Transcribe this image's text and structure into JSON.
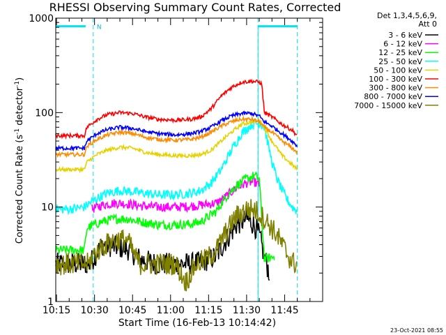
{
  "chart_data": {
    "type": "line",
    "title": "RHESSI Observing Summary Count Rates, Corrected",
    "xlabel": "Start Time (16-Feb-13 10:14:42)",
    "ylabel_main": "Corrected Count Rate (s",
    "ylabel_sup1": "-1",
    "ylabel_mid": " detector",
    "ylabel_sup2": "-1",
    "ylabel_end": ")",
    "x_ticks": [
      "10:15",
      "10:30",
      "10:45",
      "11:00",
      "11:15",
      "11:30",
      "11:45"
    ],
    "x_tick_minutes": [
      15,
      30,
      45,
      60,
      75,
      90,
      105
    ],
    "x_range_minutes": [
      14.7,
      120
    ],
    "y_scale": "log",
    "ylim": [
      1,
      1000
    ],
    "y_ticks": [
      "1",
      "10",
      "100",
      "1000"
    ],
    "y_tick_values": [
      1,
      10,
      100,
      1000
    ],
    "legend_header": [
      "Det 1,3,4,5,6,9,",
      "Att 0"
    ],
    "night_marker": "N",
    "footer_date": "23-Oct-2021 08:55",
    "series": [
      {
        "name": "3 - 6 keV",
        "color": "#000000",
        "points": [
          [
            14.7,
            2.5
          ],
          [
            28,
            2.5
          ],
          [
            30,
            3.0
          ],
          [
            33,
            4.0
          ],
          [
            38,
            3.8
          ],
          [
            43,
            3.6
          ],
          [
            48,
            2.8
          ],
          [
            55,
            2.5
          ],
          [
            60,
            2.5
          ],
          [
            68,
            2.5
          ],
          [
            72,
            2.6
          ],
          [
            78,
            3.0
          ],
          [
            82,
            4.5
          ],
          [
            86,
            6.5
          ],
          [
            90,
            7.5
          ],
          [
            93,
            6.5
          ],
          [
            95,
            5.0
          ],
          [
            97,
            3.0
          ],
          [
            99,
            2.0
          ]
        ]
      },
      {
        "name": "6 - 12 keV",
        "color": "#ff00ff",
        "points": [
          [
            29,
            9.5
          ],
          [
            33,
            10.5
          ],
          [
            38,
            11.0
          ],
          [
            43,
            10.8
          ],
          [
            48,
            10.3
          ],
          [
            55,
            10.0
          ],
          [
            62,
            10.0
          ],
          [
            68,
            10.2
          ],
          [
            72,
            10.5
          ],
          [
            78,
            11.0
          ],
          [
            82,
            13.0
          ],
          [
            86,
            16.0
          ],
          [
            90,
            18.0
          ],
          [
            93,
            18.5
          ],
          [
            95,
            17.0
          ]
        ]
      },
      {
        "name": "12 - 25 keV",
        "color": "#00ff00",
        "points": [
          [
            14.7,
            3.5
          ],
          [
            26,
            3.5
          ],
          [
            27,
            6.0
          ],
          [
            30,
            6.5
          ],
          [
            33,
            7.0
          ],
          [
            38,
            7.5
          ],
          [
            43,
            7.5
          ],
          [
            48,
            7.0
          ],
          [
            55,
            6.5
          ],
          [
            62,
            6.5
          ],
          [
            68,
            6.6
          ],
          [
            72,
            7.0
          ],
          [
            78,
            9.0
          ],
          [
            82,
            13.0
          ],
          [
            86,
            17.0
          ],
          [
            90,
            20.0
          ],
          [
            93,
            21.5
          ],
          [
            95,
            20.0
          ],
          [
            97,
            2.8
          ],
          [
            99,
            2.9
          ],
          [
            101,
            3.0
          ]
        ]
      },
      {
        "name": "25 - 50 keV",
        "color": "#00ffff",
        "points": [
          [
            14.7,
            9.5
          ],
          [
            20,
            9.5
          ],
          [
            26,
            10.0
          ],
          [
            30,
            12.0
          ],
          [
            35,
            14.0
          ],
          [
            40,
            15.0
          ],
          [
            45,
            14.5
          ],
          [
            50,
            14.0
          ],
          [
            55,
            13.5
          ],
          [
            62,
            13.5
          ],
          [
            68,
            14.0
          ],
          [
            72,
            15.0
          ],
          [
            76,
            18.0
          ],
          [
            80,
            25.0
          ],
          [
            84,
            40.0
          ],
          [
            88,
            60.0
          ],
          [
            92,
            75.0
          ],
          [
            95,
            78.0
          ],
          [
            97,
            70.0
          ],
          [
            100,
            30.0
          ],
          [
            102,
            20.0
          ],
          [
            104,
            15.0
          ],
          [
            106,
            12.0
          ],
          [
            108,
            10.0
          ],
          [
            110,
            9.0
          ]
        ]
      },
      {
        "name": "50 - 100 keV",
        "color": "#e6d200",
        "points": [
          [
            14.7,
            25.0
          ],
          [
            26,
            25.0
          ],
          [
            27,
            30.0
          ],
          [
            31,
            36.0
          ],
          [
            35,
            40.0
          ],
          [
            40,
            43.0
          ],
          [
            45,
            42.0
          ],
          [
            50,
            38.0
          ],
          [
            55,
            36.0
          ],
          [
            62,
            35.0
          ],
          [
            68,
            35.0
          ],
          [
            72,
            36.0
          ],
          [
            76,
            40.0
          ],
          [
            80,
            50.0
          ],
          [
            84,
            62.0
          ],
          [
            88,
            75.0
          ],
          [
            92,
            80.0
          ],
          [
            95,
            82.0
          ],
          [
            97,
            70.0
          ],
          [
            100,
            50.0
          ],
          [
            104,
            35.0
          ],
          [
            108,
            28.0
          ],
          [
            110,
            25.0
          ]
        ]
      },
      {
        "name": "100 - 300 keV",
        "color": "#ff0000",
        "points": [
          [
            14.7,
            57.0
          ],
          [
            26,
            57.0
          ],
          [
            27,
            70.0
          ],
          [
            31,
            85.0
          ],
          [
            35,
            95.0
          ],
          [
            40,
            100.0
          ],
          [
            45,
            98.0
          ],
          [
            50,
            90.0
          ],
          [
            55,
            85.0
          ],
          [
            62,
            83.0
          ],
          [
            68,
            85.0
          ],
          [
            72,
            90.0
          ],
          [
            76,
            110.0
          ],
          [
            80,
            150.0
          ],
          [
            84,
            185.0
          ],
          [
            88,
            210.0
          ],
          [
            92,
            215.0
          ],
          [
            95,
            210.0
          ],
          [
            96,
            200.0
          ],
          [
            97,
            100.0
          ],
          [
            100,
            90.0
          ],
          [
            104,
            75.0
          ],
          [
            108,
            65.0
          ],
          [
            110,
            57.0
          ]
        ]
      },
      {
        "name": "300 - 800 keV",
        "color": "#ff8c00",
        "points": [
          [
            14.7,
            36.0
          ],
          [
            26,
            36.0
          ],
          [
            27,
            44.0
          ],
          [
            31,
            52.0
          ],
          [
            35,
            58.0
          ],
          [
            40,
            62.0
          ],
          [
            45,
            60.0
          ],
          [
            50,
            55.0
          ],
          [
            55,
            52.0
          ],
          [
            62,
            51.0
          ],
          [
            68,
            52.0
          ],
          [
            72,
            55.0
          ],
          [
            76,
            62.0
          ],
          [
            80,
            72.0
          ],
          [
            84,
            80.0
          ],
          [
            88,
            85.0
          ],
          [
            92,
            85.0
          ],
          [
            95,
            80.0
          ],
          [
            97,
            70.0
          ],
          [
            100,
            62.0
          ],
          [
            104,
            50.0
          ],
          [
            108,
            42.0
          ],
          [
            110,
            38.0
          ]
        ]
      },
      {
        "name": "800 - 7000 keV",
        "color": "#0000ff",
        "points": [
          [
            14.7,
            42.0
          ],
          [
            26,
            42.0
          ],
          [
            27,
            50.0
          ],
          [
            31,
            60.0
          ],
          [
            35,
            66.0
          ],
          [
            40,
            70.0
          ],
          [
            45,
            68.0
          ],
          [
            50,
            63.0
          ],
          [
            55,
            60.0
          ],
          [
            62,
            58.0
          ],
          [
            68,
            60.0
          ],
          [
            72,
            63.0
          ],
          [
            76,
            70.0
          ],
          [
            80,
            82.0
          ],
          [
            84,
            92.0
          ],
          [
            88,
            98.0
          ],
          [
            92,
            98.0
          ],
          [
            95,
            92.0
          ],
          [
            97,
            80.0
          ],
          [
            100,
            72.0
          ],
          [
            104,
            60.0
          ],
          [
            108,
            50.0
          ],
          [
            110,
            44.0
          ]
        ]
      },
      {
        "name": "7000 - 15000 keV",
        "color": "#808000",
        "points": [
          [
            14.7,
            2.5
          ],
          [
            28,
            2.5
          ],
          [
            29,
            3.0
          ],
          [
            33,
            3.8
          ],
          [
            38,
            4.5
          ],
          [
            43,
            4.5
          ],
          [
            46,
            3.0
          ],
          [
            48,
            2.5
          ],
          [
            55,
            2.5
          ],
          [
            62,
            2.5
          ],
          [
            66,
            1.6
          ],
          [
            70,
            2.5
          ],
          [
            74,
            2.8
          ],
          [
            78,
            3.5
          ],
          [
            82,
            5.5
          ],
          [
            86,
            8.0
          ],
          [
            90,
            9.5
          ],
          [
            93,
            9.5
          ],
          [
            96,
            8.0
          ],
          [
            99,
            6.5
          ],
          [
            102,
            5.0
          ],
          [
            104,
            4.0
          ],
          [
            106,
            3.2
          ],
          [
            108,
            2.6
          ],
          [
            110,
            2.5
          ]
        ]
      }
    ],
    "attenuator_bars": [
      [
        14.7,
        26.5
      ],
      [
        94.5,
        110.0
      ]
    ],
    "night_boundaries": [
      14.7,
      29.5,
      94.5,
      110.0
    ],
    "grid": false,
    "legend_position": "right"
  }
}
